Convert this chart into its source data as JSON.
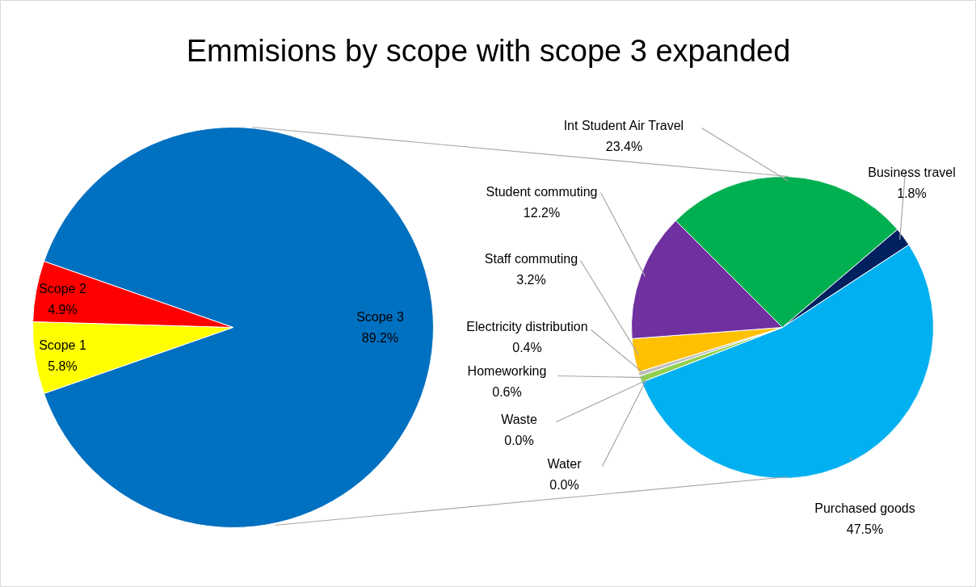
{
  "chart_data": [
    {
      "type": "pie",
      "title": "Emmisions by scope with scope 3 expanded",
      "categories": [
        "Scope 3",
        "Scope 1",
        "Scope 2"
      ],
      "values": [
        89.2,
        5.8,
        4.9
      ],
      "colors": [
        "#0070c0",
        "#ffff00",
        "#ff0000"
      ],
      "value_labels": [
        "89.2%",
        "5.8%",
        "4.9%"
      ]
    },
    {
      "type": "pie",
      "categories": [
        "Int Student Air Travel",
        "Business travel",
        "Purchased goods",
        "Water",
        "Waste",
        "Homeworking",
        "Electricity distribution",
        "Staff commuting",
        "Student commuting"
      ],
      "values": [
        23.4,
        1.8,
        47.5,
        0.0,
        0.0,
        0.6,
        0.4,
        3.2,
        12.2
      ],
      "colors": [
        "#00b050",
        "#002060",
        "#00b0f0",
        "#4472c4",
        "#ed7d31",
        "#92d050",
        "#bfbfbf",
        "#ffc000",
        "#7030a0"
      ],
      "value_labels": [
        "23.4%",
        "1.8%",
        "47.5%",
        "0.0%",
        "0.0%",
        "0.6%",
        "0.4%",
        "3.2%",
        "12.2%"
      ]
    }
  ]
}
